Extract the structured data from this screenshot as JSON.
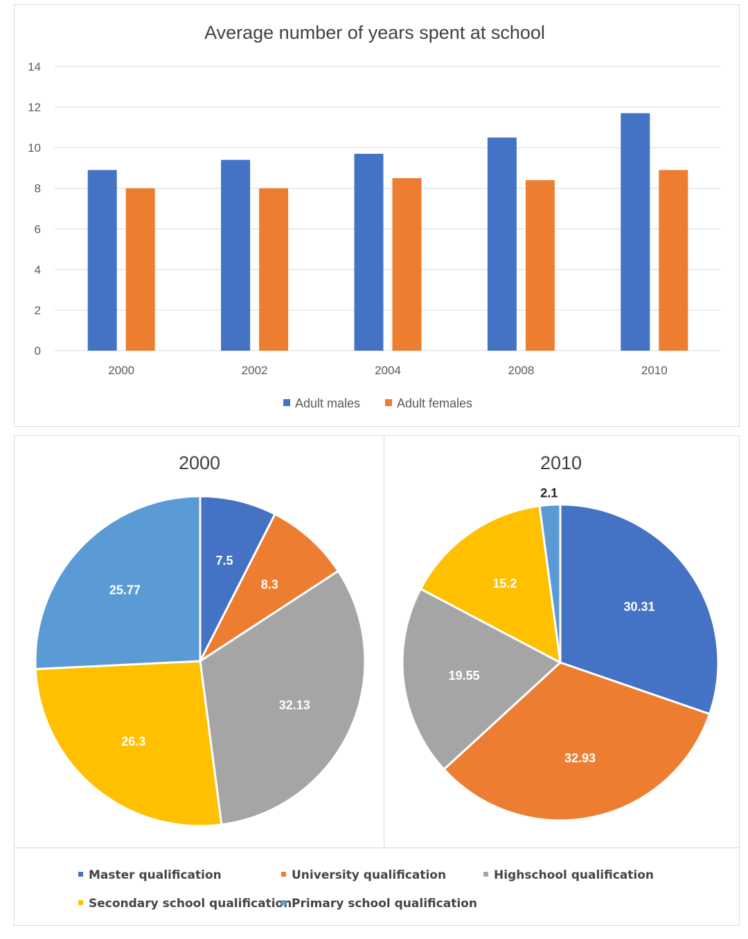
{
  "chart_data": [
    {
      "type": "bar",
      "title": "Average number of years spent at school",
      "categories": [
        "2000",
        "2002",
        "2004",
        "2008",
        "2010"
      ],
      "series": [
        {
          "name": "Adult males",
          "values": [
            8.9,
            9.4,
            9.7,
            10.5,
            11.7
          ],
          "color": "#4472C4"
        },
        {
          "name": "Adult females",
          "values": [
            8.0,
            8.0,
            8.5,
            8.4,
            8.9
          ],
          "color": "#ED7D31"
        }
      ],
      "yticks": [
        "0",
        "2",
        "4",
        "6",
        "8",
        "10",
        "12",
        "14"
      ],
      "ylim": [
        0,
        14
      ],
      "grid": true,
      "legend": "bottom"
    },
    {
      "type": "pie",
      "title": "2000",
      "slices": [
        {
          "category": "Master qualification",
          "value": 7.5,
          "label": "7.5",
          "color": "#4472C4"
        },
        {
          "category": "University qualification",
          "value": 8.3,
          "label": "8.3",
          "color": "#ED7D31"
        },
        {
          "category": "Highschool qualification",
          "value": 32.13,
          "label": "32.13",
          "color": "#A5A5A5"
        },
        {
          "category": "Secondary school qualification",
          "value": 26.3,
          "label": "26.3",
          "color": "#FFC000"
        },
        {
          "category": "Primary school qualification",
          "value": 25.77,
          "label": "25.77",
          "color": "#5B9BD5"
        }
      ]
    },
    {
      "type": "pie",
      "title": "2010",
      "slices": [
        {
          "category": "Master qualification",
          "value": 30.31,
          "label": "30.31",
          "color": "#4472C4"
        },
        {
          "category": "University qualification",
          "value": 32.93,
          "label": "32.93",
          "color": "#ED7D31"
        },
        {
          "category": "Highschool qualification",
          "value": 19.55,
          "label": "19.55",
          "color": "#A5A5A5"
        },
        {
          "category": "Secondary school qualification",
          "value": 15.2,
          "label": "15.2",
          "color": "#FFC000"
        },
        {
          "category": "Primary school qualification",
          "value": 2.1,
          "label": "2.1",
          "color": "#5B9BD5"
        }
      ]
    }
  ],
  "pie_legend": [
    {
      "label": "Master qualification",
      "color": "#4472C4"
    },
    {
      "label": "University qualification",
      "color": "#ED7D31"
    },
    {
      "label": "Highschool qualification",
      "color": "#A5A5A5"
    },
    {
      "label": "Secondary school qualification",
      "color": "#FFC000"
    },
    {
      "label": "Primary school qualification",
      "color": "#5B9BD5"
    }
  ]
}
